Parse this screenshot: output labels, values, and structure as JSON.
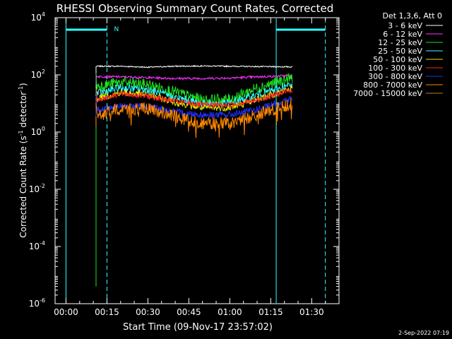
{
  "chart_data": {
    "type": "line",
    "title": "RHESSI Observing Summary Count Rates, Corrected",
    "xlabel": "Start Time (09-Nov-17 23:57:02)",
    "ylabel_main": "Corrected Count Rate (s",
    "ylabel_sup1": "-1",
    "ylabel_mid": " detector",
    "ylabel_sup2": "-1",
    "ylabel_end": ")",
    "footer": "2-Sep-2022 07:19",
    "y_scale": "log",
    "ylim": [
      1e-06,
      10000.0
    ],
    "xlim_minutes": [
      -4.0,
      100.0
    ],
    "x_tick_labels": [
      "00:00",
      "00:15",
      "00:30",
      "00:45",
      "01:00",
      "01:15",
      "01:30"
    ],
    "x_tick_minutes": [
      0,
      15,
      30,
      45,
      60,
      75,
      90
    ],
    "y_ticks": [
      {
        "base": "10",
        "exp": "-6",
        "value": 1e-06
      },
      {
        "base": "10",
        "exp": "-4",
        "value": 0.0001
      },
      {
        "base": "10",
        "exp": "-2",
        "value": 0.01
      },
      {
        "base": "10",
        "exp": "0",
        "value": 1
      },
      {
        "base": "10",
        "exp": "2",
        "value": 100
      },
      {
        "base": "10",
        "exp": "4",
        "value": 10000
      }
    ],
    "legend_header": "Det 1,3,6, Att 0",
    "legend_position": "outside-right",
    "night_label": "N",
    "data_start_minute": 11.0,
    "data_end_minute": 83.0,
    "markers": {
      "solid_cyan_minutes": [
        0.0,
        77.0
      ],
      "dashed_cyan_minutes": [
        15.0,
        95.0
      ],
      "bars_minutes": [
        [
          0.0,
          15.0
        ],
        [
          77.0,
          95.0
        ]
      ]
    },
    "series": [
      {
        "name": "3 - 6 keV",
        "color": "#ffffff",
        "x": [
          11,
          20,
          30,
          40,
          50,
          60,
          70,
          83
        ],
        "y": [
          200,
          200,
          185,
          200,
          205,
          200,
          195,
          190
        ]
      },
      {
        "name": "6 - 12 keV",
        "color": "#ff30ff",
        "x": [
          11,
          20,
          30,
          40,
          50,
          60,
          70,
          83
        ],
        "y": [
          88,
          85,
          80,
          75,
          75,
          78,
          85,
          95
        ]
      },
      {
        "name": "12 - 25 keV",
        "color": "#20e020",
        "x": [
          11,
          20,
          30,
          40,
          50,
          60,
          70,
          83
        ],
        "y": [
          40,
          55,
          45,
          25,
          13,
          14,
          35,
          80
        ]
      },
      {
        "name": "25 - 50 keV",
        "color": "#30ffff",
        "x": [
          11,
          20,
          30,
          40,
          50,
          60,
          70,
          83
        ],
        "y": [
          22,
          35,
          30,
          16,
          10,
          10,
          20,
          45
        ]
      },
      {
        "name": "50 - 100 keV",
        "color": "#e8e800",
        "x": [
          11,
          20,
          30,
          40,
          50,
          60,
          70,
          83
        ],
        "y": [
          15,
          24,
          20,
          11,
          7,
          7,
          14,
          35
        ]
      },
      {
        "name": "100 - 300 keV",
        "color": "#ff2020",
        "x": [
          11,
          20,
          30,
          40,
          50,
          60,
          70,
          83
        ],
        "y": [
          13,
          22,
          18,
          12,
          9,
          9,
          13,
          30
        ]
      },
      {
        "name": "300 - 800 keV",
        "color": "#2030ff",
        "x": [
          11,
          20,
          30,
          40,
          50,
          60,
          70,
          83
        ],
        "y": [
          6,
          8,
          8,
          5,
          4,
          4,
          6,
          15
        ]
      },
      {
        "name": "800 - 7000 keV",
        "color": "#ff8800",
        "x": [
          11,
          20,
          30,
          40,
          50,
          60,
          70,
          83
        ],
        "y": [
          3.5,
          6.5,
          6.5,
          3.5,
          2,
          2,
          4,
          10
        ]
      },
      {
        "name": "7000 - 15000 keV",
        "color": "#b08020",
        "x": [
          11,
          20,
          30,
          40,
          50,
          60,
          70,
          83
        ],
        "y": [
          null,
          null,
          null,
          null,
          null,
          null,
          null,
          null
        ]
      }
    ]
  }
}
